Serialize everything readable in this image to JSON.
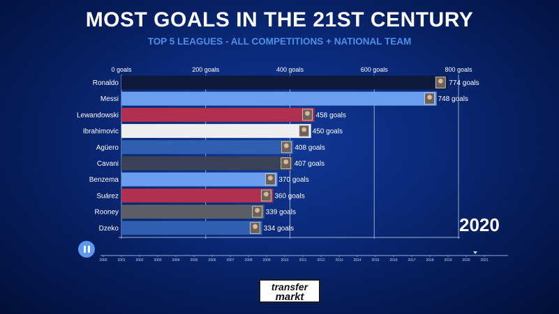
{
  "title": "MOST GOALS IN THE 21ST CENTURY",
  "subtitle": "TOP 5 LEAGUES - ALL COMPETITIONS + NATIONAL TEAM",
  "current_year": "2020",
  "logo": {
    "line1": "transfer",
    "line2": "markt"
  },
  "colors": {
    "gridline": "#c9d6ee",
    "axis_text": "#ffffff",
    "label_text": "#ffffff",
    "timeline": "#8fb0e6"
  },
  "icons": {
    "play_button": "pause-icon",
    "bar_end": "player-photo"
  },
  "chart_data": {
    "type": "bar",
    "orientation": "horizontal",
    "title": "MOST GOALS IN THE 21ST CENTURY",
    "subtitle": "TOP 5 LEAGUES - ALL COMPETITIONS + NATIONAL TEAM",
    "xlim": [
      0,
      800
    ],
    "x_ticks": [
      {
        "value": 0,
        "label": "0 goals"
      },
      {
        "value": 200,
        "label": "200 goals"
      },
      {
        "value": 400,
        "label": "400 goals"
      },
      {
        "value": 600,
        "label": "600 goals"
      },
      {
        "value": 800,
        "label": "800 goals"
      }
    ],
    "grid": true,
    "categories": [
      "Ronaldo",
      "Messi",
      "Lewandowski",
      "Ibrahimovic",
      "Agüero",
      "Cavani",
      "Benzema",
      "Suárez",
      "Rooney",
      "Dzeko"
    ],
    "values": [
      774,
      748,
      458,
      450,
      408,
      407,
      370,
      360,
      339,
      334
    ],
    "value_labels": [
      "774 goals",
      "748 goals",
      "458 goals",
      "450 goals",
      "408 goals",
      "407 goals",
      "370 goals",
      "360 goals",
      "339 goals",
      "334 goals"
    ],
    "bar_colors": [
      "#0e1a3c",
      "#6b9eee",
      "#b2304f",
      "#eeeef0",
      "#2f5fae",
      "#3a4257",
      "#6b9eee",
      "#b2304f",
      "#5b5f68",
      "#2f5fae"
    ],
    "timeline": {
      "years": [
        "2000",
        "2001",
        "2002",
        "2003",
        "2004",
        "2005",
        "2006",
        "2007",
        "2008",
        "2009",
        "2010",
        "2011",
        "2012",
        "2013",
        "2014",
        "2015",
        "2016",
        "2017",
        "2018",
        "2019",
        "2020",
        "2021"
      ],
      "current": "2020"
    }
  }
}
